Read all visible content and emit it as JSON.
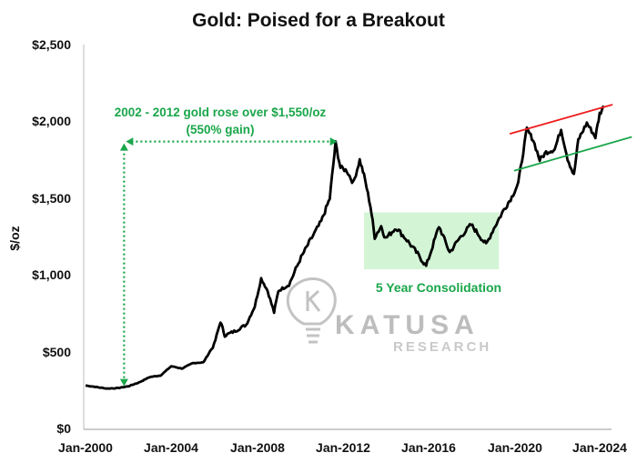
{
  "chart_data": {
    "type": "line",
    "title": "Gold: Poised for a Breakout",
    "xlabel": "",
    "ylabel": "$/oz",
    "ylim": [
      0,
      2500
    ],
    "y_ticks": [
      0,
      500,
      1000,
      1500,
      2000,
      2500
    ],
    "y_tick_labels": [
      "$0",
      "$500",
      "$1,000",
      "$1,500",
      "$2,000",
      "$2,500"
    ],
    "x_ticks": [
      2000,
      2004,
      2008,
      2012,
      2016,
      2020,
      2024
    ],
    "x_tick_labels": [
      "Jan-2000",
      "Jan-2004",
      "Jan-2008",
      "Jan-2012",
      "Jan-2016",
      "Jan-2020",
      "Jan-2024"
    ],
    "grid": false,
    "series": [
      {
        "color": "#000000",
        "x": [
          2000.0,
          2000.5,
          2001.0,
          2001.5,
          2002.0,
          2002.5,
          2003.0,
          2003.5,
          2004.0,
          2004.5,
          2005.0,
          2005.5,
          2006.0,
          2006.3,
          2006.5,
          2007.0,
          2007.5,
          2007.9,
          2008.2,
          2008.5,
          2008.8,
          2009.0,
          2009.5,
          2010.0,
          2010.5,
          2011.0,
          2011.4,
          2011.67,
          2011.9,
          2012.2,
          2012.5,
          2012.8,
          2013.0,
          2013.3,
          2013.5,
          2013.8,
          2014.0,
          2014.5,
          2015.0,
          2015.5,
          2015.9,
          2016.5,
          2017.0,
          2017.5,
          2018.0,
          2018.7,
          2019.0,
          2019.5,
          2019.9,
          2020.2,
          2020.6,
          2020.9,
          2021.2,
          2021.5,
          2021.9,
          2022.2,
          2022.5,
          2022.8,
          2023.0,
          2023.4,
          2023.8,
          2024.0,
          2024.2
        ],
        "y": [
          285,
          275,
          265,
          268,
          280,
          305,
          340,
          350,
          410,
          395,
          430,
          435,
          550,
          700,
          610,
          640,
          680,
          800,
          980,
          900,
          760,
          900,
          940,
          1100,
          1230,
          1350,
          1500,
          1860,
          1700,
          1680,
          1600,
          1750,
          1650,
          1450,
          1250,
          1320,
          1240,
          1310,
          1230,
          1140,
          1060,
          1320,
          1150,
          1250,
          1330,
          1200,
          1290,
          1420,
          1510,
          1600,
          1950,
          1880,
          1750,
          1800,
          1820,
          1950,
          1760,
          1650,
          1880,
          1990,
          1900,
          2050,
          2100
        ]
      }
    ],
    "annotations": {
      "rise_line1": "2002 - 2012 gold rose over $1,550/oz",
      "rise_line2": "(550% gain)",
      "consolidation": "5 Year Consolidation",
      "rise_start": {
        "x": 2001.8,
        "y": 280
      },
      "rise_peak": {
        "x": 2011.67,
        "y": 1870
      },
      "consolidation_box": {
        "x0": 2013.0,
        "x1": 2019.3,
        "y0": 1040,
        "y1": 1410
      },
      "resistance": {
        "x0": 2019.8,
        "y0": 1920,
        "x1": 2024.6,
        "y1": 2110,
        "color": "#ee1c1c"
      },
      "support": {
        "x0": 2020.0,
        "y0": 1680,
        "x1": 2025.5,
        "y1": 1900,
        "color": "#1aa64a"
      }
    }
  },
  "watermark": {
    "brand": "KATUSA",
    "sub": "RESEARCH"
  }
}
